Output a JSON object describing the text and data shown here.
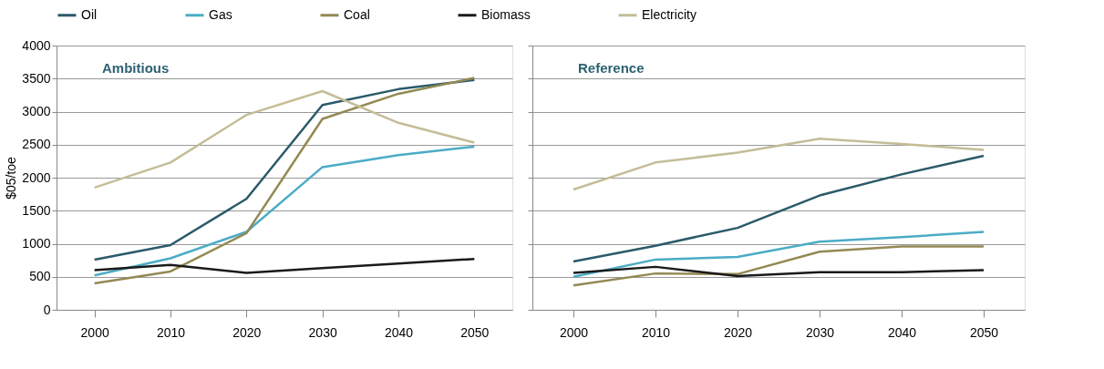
{
  "chart_data": [
    {
      "type": "line",
      "title": "Ambitious",
      "ylabel": "$05/toe",
      "categories": [
        "2000",
        "2010",
        "2020",
        "2030",
        "2040",
        "2050"
      ],
      "ylim": [
        0,
        4000
      ],
      "yticks": [
        0,
        500,
        1000,
        1500,
        2000,
        2500,
        3000,
        3500,
        4000
      ],
      "grid": "y",
      "legend": "top",
      "line_style": "solid",
      "marker": "none",
      "series": [
        {
          "name": "Oil",
          "color": "#2a5a6a",
          "values": [
            760,
            980,
            1680,
            3100,
            3340,
            3480
          ]
        },
        {
          "name": "Gas",
          "color": "#4bacc6",
          "values": [
            520,
            780,
            1180,
            2160,
            2340,
            2470
          ]
        },
        {
          "name": "Coal",
          "color": "#938953",
          "values": [
            400,
            580,
            1160,
            2890,
            3270,
            3510
          ]
        },
        {
          "name": "Biomass",
          "color": "#1a1a1a",
          "values": [
            600,
            680,
            560,
            630,
            700,
            770
          ]
        },
        {
          "name": "Electricity",
          "color": "#c4bd97",
          "values": [
            1850,
            2230,
            2950,
            3310,
            2830,
            2530
          ]
        }
      ]
    },
    {
      "type": "line",
      "title": "Reference",
      "categories": [
        "2000",
        "2010",
        "2020",
        "2030",
        "2040",
        "2050"
      ],
      "ylim": [
        0,
        4000
      ],
      "yticks": [
        0,
        500,
        1000,
        1500,
        2000,
        2500,
        3000,
        3500,
        4000
      ],
      "grid": "y",
      "legend": "top",
      "tick_labels": "x",
      "line_style": "solid",
      "marker": "none",
      "series": [
        {
          "name": "Oil",
          "color": "#2a5a6a",
          "values": [
            730,
            970,
            1240,
            1730,
            2050,
            2330
          ]
        },
        {
          "name": "Gas",
          "color": "#4bacc6",
          "values": [
            500,
            760,
            800,
            1030,
            1100,
            1180
          ]
        },
        {
          "name": "Coal",
          "color": "#938953",
          "values": [
            370,
            550,
            540,
            880,
            960,
            960
          ]
        },
        {
          "name": "Biomass",
          "color": "#1a1a1a",
          "values": [
            560,
            650,
            510,
            570,
            570,
            600
          ]
        },
        {
          "name": "Electricity",
          "color": "#c4bd97",
          "values": [
            1820,
            2230,
            2380,
            2590,
            2510,
            2420
          ]
        }
      ]
    }
  ]
}
